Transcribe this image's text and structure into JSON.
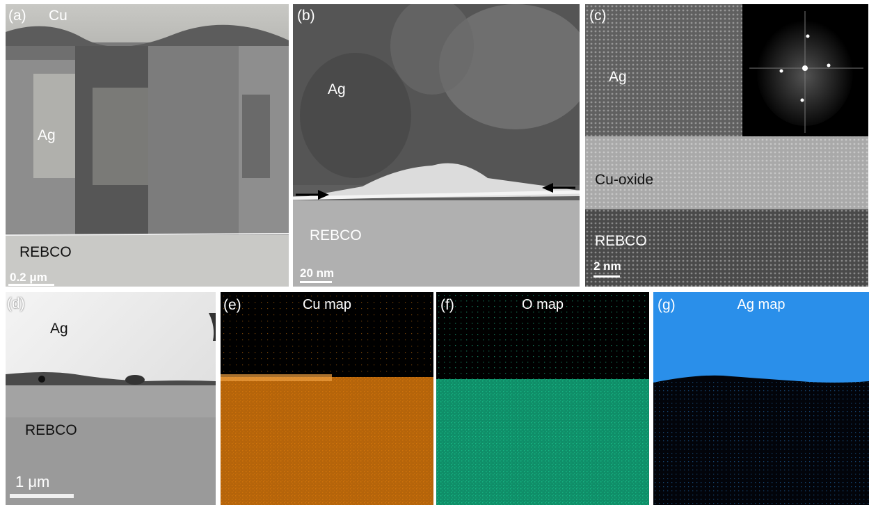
{
  "colors": {
    "cu_map": "#e8820c",
    "o_map": "#20d39a",
    "ag_map": "#2a8fea"
  },
  "panels": {
    "a": {
      "tag": "(a)",
      "labels": {
        "top": "Cu",
        "middle": "Ag",
        "bottom": "REBCO"
      },
      "scale": "0.2 μm"
    },
    "b": {
      "tag": "(b)",
      "labels": {
        "top": "Ag",
        "bottom": "REBCO"
      },
      "scale": "20 nm"
    },
    "c": {
      "tag": "(c)",
      "labels": {
        "top": "Ag",
        "middle": "Cu-oxide",
        "bottom": "REBCO"
      },
      "scale": "2 nm"
    },
    "d": {
      "tag": "(d)",
      "labels": {
        "top": "Ag",
        "bottom": "REBCO"
      },
      "scale": "1 μm"
    },
    "e": {
      "tag": "(e)",
      "title": "Cu map"
    },
    "f": {
      "tag": "(f)",
      "title": "O map"
    },
    "g": {
      "tag": "(g)",
      "title": "Ag map"
    }
  }
}
